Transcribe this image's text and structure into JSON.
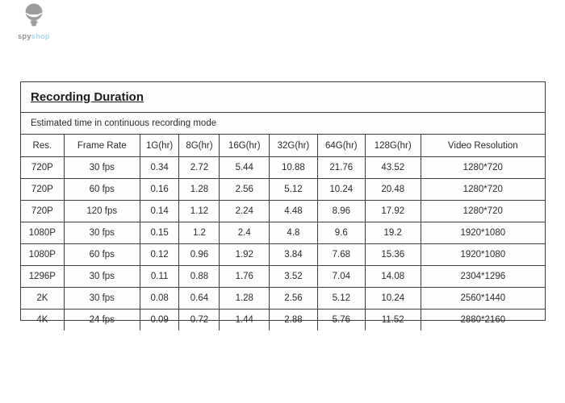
{
  "logo": {
    "icon": "spy-mascot-icon",
    "brand_part1": "spy",
    "brand_part2": "shop",
    "colors": {
      "mascot_gray": "#9c9c9c",
      "brand_gray": "#8f8f8f",
      "brand_blue": "#a9d6ea"
    }
  },
  "panel": {
    "title": "Recording Duration",
    "subtitle": "Estimated time in continuous recording mode"
  },
  "table": {
    "headers": [
      "Res.",
      "Frame Rate",
      "1G(hr)",
      "8G(hr)",
      "16G(hr)",
      "32G(hr)",
      "64G(hr)",
      "128G(hr)",
      "Video Resolution"
    ],
    "rows": [
      [
        "720P",
        "30 fps",
        "0.34",
        "2.72",
        "5.44",
        "10.88",
        "21.76",
        "43.52",
        "1280*720"
      ],
      [
        "720P",
        "60 fps",
        "0.16",
        "1.28",
        "2.56",
        "5.12",
        "10.24",
        "20.48",
        "1280*720"
      ],
      [
        "720P",
        "120 fps",
        "0.14",
        "1.12",
        "2.24",
        "4.48",
        "8.96",
        "17.92",
        "1280*720"
      ],
      [
        "1080P",
        "30 fps",
        "0.15",
        "1.2",
        "2.4",
        "4.8",
        "9.6",
        "19.2",
        "1920*1080"
      ],
      [
        "1080P",
        "60 fps",
        "0.12",
        "0.96",
        "1.92",
        "3.84",
        "7.68",
        "15.36",
        "1920*1080"
      ],
      [
        "1296P",
        "30 fps",
        "0.11",
        "0.88",
        "1.76",
        "3.52",
        "7.04",
        "14.08",
        "2304*1296"
      ],
      [
        "2K",
        "30 fps",
        "0.08",
        "0.64",
        "1.28",
        "2.56",
        "5.12",
        "10.24",
        "2560*1440"
      ],
      [
        "4K",
        "24 fps",
        "0.09",
        "0.72",
        "1.44",
        "2.88",
        "5.76",
        "11.52",
        "2880*2160"
      ]
    ]
  },
  "colors": {
    "border": "#3f3f3f",
    "text": "#2a2a2a",
    "background": "#ffffff"
  }
}
